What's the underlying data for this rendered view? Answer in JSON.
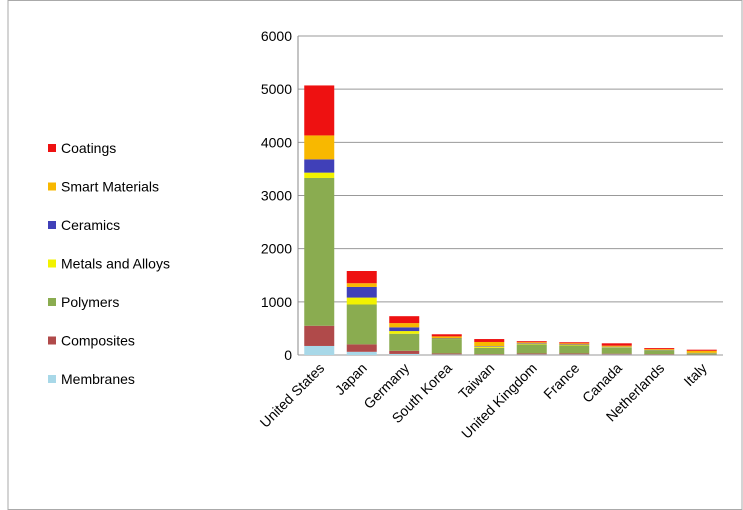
{
  "chart_data": {
    "type": "stacked-bar",
    "categories": [
      "United States",
      "Japan",
      "Germany",
      "South Korea",
      "Taiwan",
      "United Kingdom",
      "France",
      "Canada",
      "Netherlands",
      "Italy"
    ],
    "series": [
      {
        "name": "Membranes",
        "color": "#a8d8e8",
        "values": [
          170,
          60,
          20,
          10,
          5,
          10,
          10,
          10,
          5,
          5
        ]
      },
      {
        "name": "Composites",
        "color": "#b04a4a",
        "values": [
          380,
          140,
          60,
          20,
          10,
          20,
          20,
          15,
          10,
          5
        ]
      },
      {
        "name": "Polymers",
        "color": "#8aac50",
        "values": [
          2780,
          750,
          320,
          270,
          120,
          170,
          150,
          110,
          70,
          20
        ]
      },
      {
        "name": "Metals and Alloys",
        "color": "#f2f200",
        "values": [
          100,
          130,
          50,
          10,
          20,
          10,
          10,
          10,
          5,
          5
        ]
      },
      {
        "name": "Ceramics",
        "color": "#4040b8",
        "values": [
          250,
          200,
          70,
          10,
          10,
          10,
          10,
          10,
          5,
          5
        ]
      },
      {
        "name": "Smart Materials",
        "color": "#f8b800",
        "values": [
          450,
          70,
          80,
          30,
          80,
          20,
          20,
          20,
          15,
          40
        ]
      },
      {
        "name": "Coatings",
        "color": "#ee1111",
        "values": [
          940,
          230,
          130,
          40,
          55,
          20,
          20,
          45,
          20,
          20
        ]
      }
    ],
    "ylim": [
      0,
      6000
    ],
    "yticks": [
      0,
      1000,
      2000,
      3000,
      4000,
      5000,
      6000
    ],
    "grid": true
  }
}
